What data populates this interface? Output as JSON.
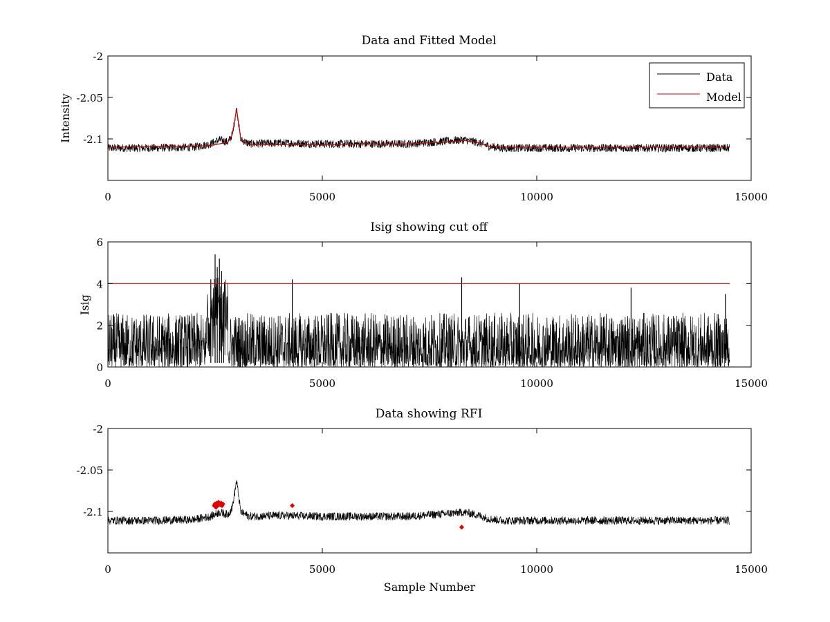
{
  "chart_data": [
    {
      "type": "line",
      "title": "Data and Fitted Model",
      "xlabel": "",
      "ylabel": "Intensity",
      "xlim": [
        0,
        15000
      ],
      "ylim": [
        -2.15,
        -2
      ],
      "xticks": [
        "0",
        "5000",
        "10000",
        "15000"
      ],
      "yticks": [
        "-2",
        "-2.05",
        "-2.1"
      ],
      "grid": false,
      "legend": "top-right",
      "noise_amplitude": 0.005,
      "series": [
        {
          "name": "Data",
          "color": "#000000",
          "x": [
            0,
            1000,
            2000,
            2400,
            2600,
            2800,
            2900,
            2950,
            3000,
            3050,
            3100,
            3300,
            4000,
            5000,
            6000,
            7000,
            7800,
            8300,
            8600,
            8900,
            9200,
            10000,
            11000,
            12000,
            13000,
            14000,
            14500
          ],
          "y": [
            -2.111,
            -2.111,
            -2.11,
            -2.106,
            -2.101,
            -2.104,
            -2.095,
            -2.08,
            -2.063,
            -2.082,
            -2.101,
            -2.106,
            -2.105,
            -2.106,
            -2.106,
            -2.106,
            -2.103,
            -2.101,
            -2.104,
            -2.109,
            -2.111,
            -2.111,
            -2.111,
            -2.111,
            -2.111,
            -2.111,
            -2.111
          ]
        },
        {
          "name": "Model",
          "color": "#d40000",
          "x": [
            0,
            1000,
            2000,
            2400,
            2600,
            2800,
            2900,
            2950,
            3000,
            3050,
            3100,
            3300,
            4000,
            5000,
            6000,
            7000,
            7800,
            8300,
            8600,
            8900,
            9200,
            10000,
            11000,
            12000,
            13000,
            14000,
            14500
          ],
          "y": [
            -2.11,
            -2.109,
            -2.109,
            -2.108,
            -2.106,
            -2.104,
            -2.095,
            -2.08,
            -2.063,
            -2.082,
            -2.101,
            -2.107,
            -2.107,
            -2.107,
            -2.106,
            -2.106,
            -2.104,
            -2.102,
            -2.104,
            -2.109,
            -2.11,
            -2.11,
            -2.11,
            -2.11,
            -2.11,
            -2.11,
            -2.11
          ]
        }
      ]
    },
    {
      "type": "line",
      "title": "Isig showing cut off",
      "xlabel": "",
      "ylabel": "Isig",
      "xlim": [
        0,
        15000
      ],
      "ylim": [
        0,
        6
      ],
      "xticks": [
        "0",
        "5000",
        "10000",
        "15000"
      ],
      "yticks": [
        "0",
        "2",
        "4",
        "6"
      ],
      "grid": false,
      "series": [
        {
          "color": "#000000",
          "x": [
            0,
            14500
          ],
          "y": [
            0.8,
            0.8
          ],
          "spikes": [
            {
              "x": 2400,
              "y": 4.2
            },
            {
              "x": 2500,
              "y": 5.4
            },
            {
              "x": 2550,
              "y": 4.8
            },
            {
              "x": 2600,
              "y": 5.2
            },
            {
              "x": 2650,
              "y": 4.6
            },
            {
              "x": 2700,
              "y": 3.6
            },
            {
              "x": 4300,
              "y": 4.2
            },
            {
              "x": 8250,
              "y": 4.3
            },
            {
              "x": 9600,
              "y": 4.0
            },
            {
              "x": 12200,
              "y": 3.8
            },
            {
              "x": 14400,
              "y": 3.5
            }
          ]
        },
        {
          "color": "#d40000",
          "x": [
            0,
            14500
          ],
          "y": [
            4,
            4
          ]
        }
      ]
    },
    {
      "type": "line",
      "title": "Data showing RFI",
      "xlabel": "Sample Number",
      "ylabel": "",
      "xlim": [
        0,
        15000
      ],
      "ylim": [
        -2.15,
        -2
      ],
      "xticks": [
        "0",
        "5000",
        "10000",
        "15000"
      ],
      "yticks": [
        "-2",
        "-2.05",
        "-2.1"
      ],
      "grid": false,
      "noise_amplitude": 0.005,
      "series": [
        {
          "color": "#000000",
          "x": [
            0,
            1000,
            2000,
            2400,
            2600,
            2800,
            2900,
            2950,
            3000,
            3050,
            3100,
            3300,
            4000,
            5000,
            6000,
            7000,
            7800,
            8300,
            8600,
            8900,
            9200,
            10000,
            11000,
            12000,
            13000,
            14000,
            14500
          ],
          "y": [
            -2.111,
            -2.111,
            -2.11,
            -2.106,
            -2.101,
            -2.104,
            -2.095,
            -2.08,
            -2.063,
            -2.082,
            -2.101,
            -2.106,
            -2.105,
            -2.106,
            -2.106,
            -2.106,
            -2.103,
            -2.101,
            -2.104,
            -2.109,
            -2.111,
            -2.111,
            -2.111,
            -2.111,
            -2.111,
            -2.111,
            -2.111
          ]
        }
      ],
      "rfi_points": {
        "color": "#e00000",
        "x": [
          2480,
          2500,
          2520,
          2540,
          2560,
          2580,
          2600,
          2620,
          2640,
          2660,
          2680,
          4300,
          8250
        ],
        "y": [
          -2.093,
          -2.091,
          -2.095,
          -2.09,
          -2.093,
          -2.089,
          -2.091,
          -2.092,
          -2.09,
          -2.093,
          -2.091,
          -2.093,
          -2.119
        ]
      }
    }
  ]
}
